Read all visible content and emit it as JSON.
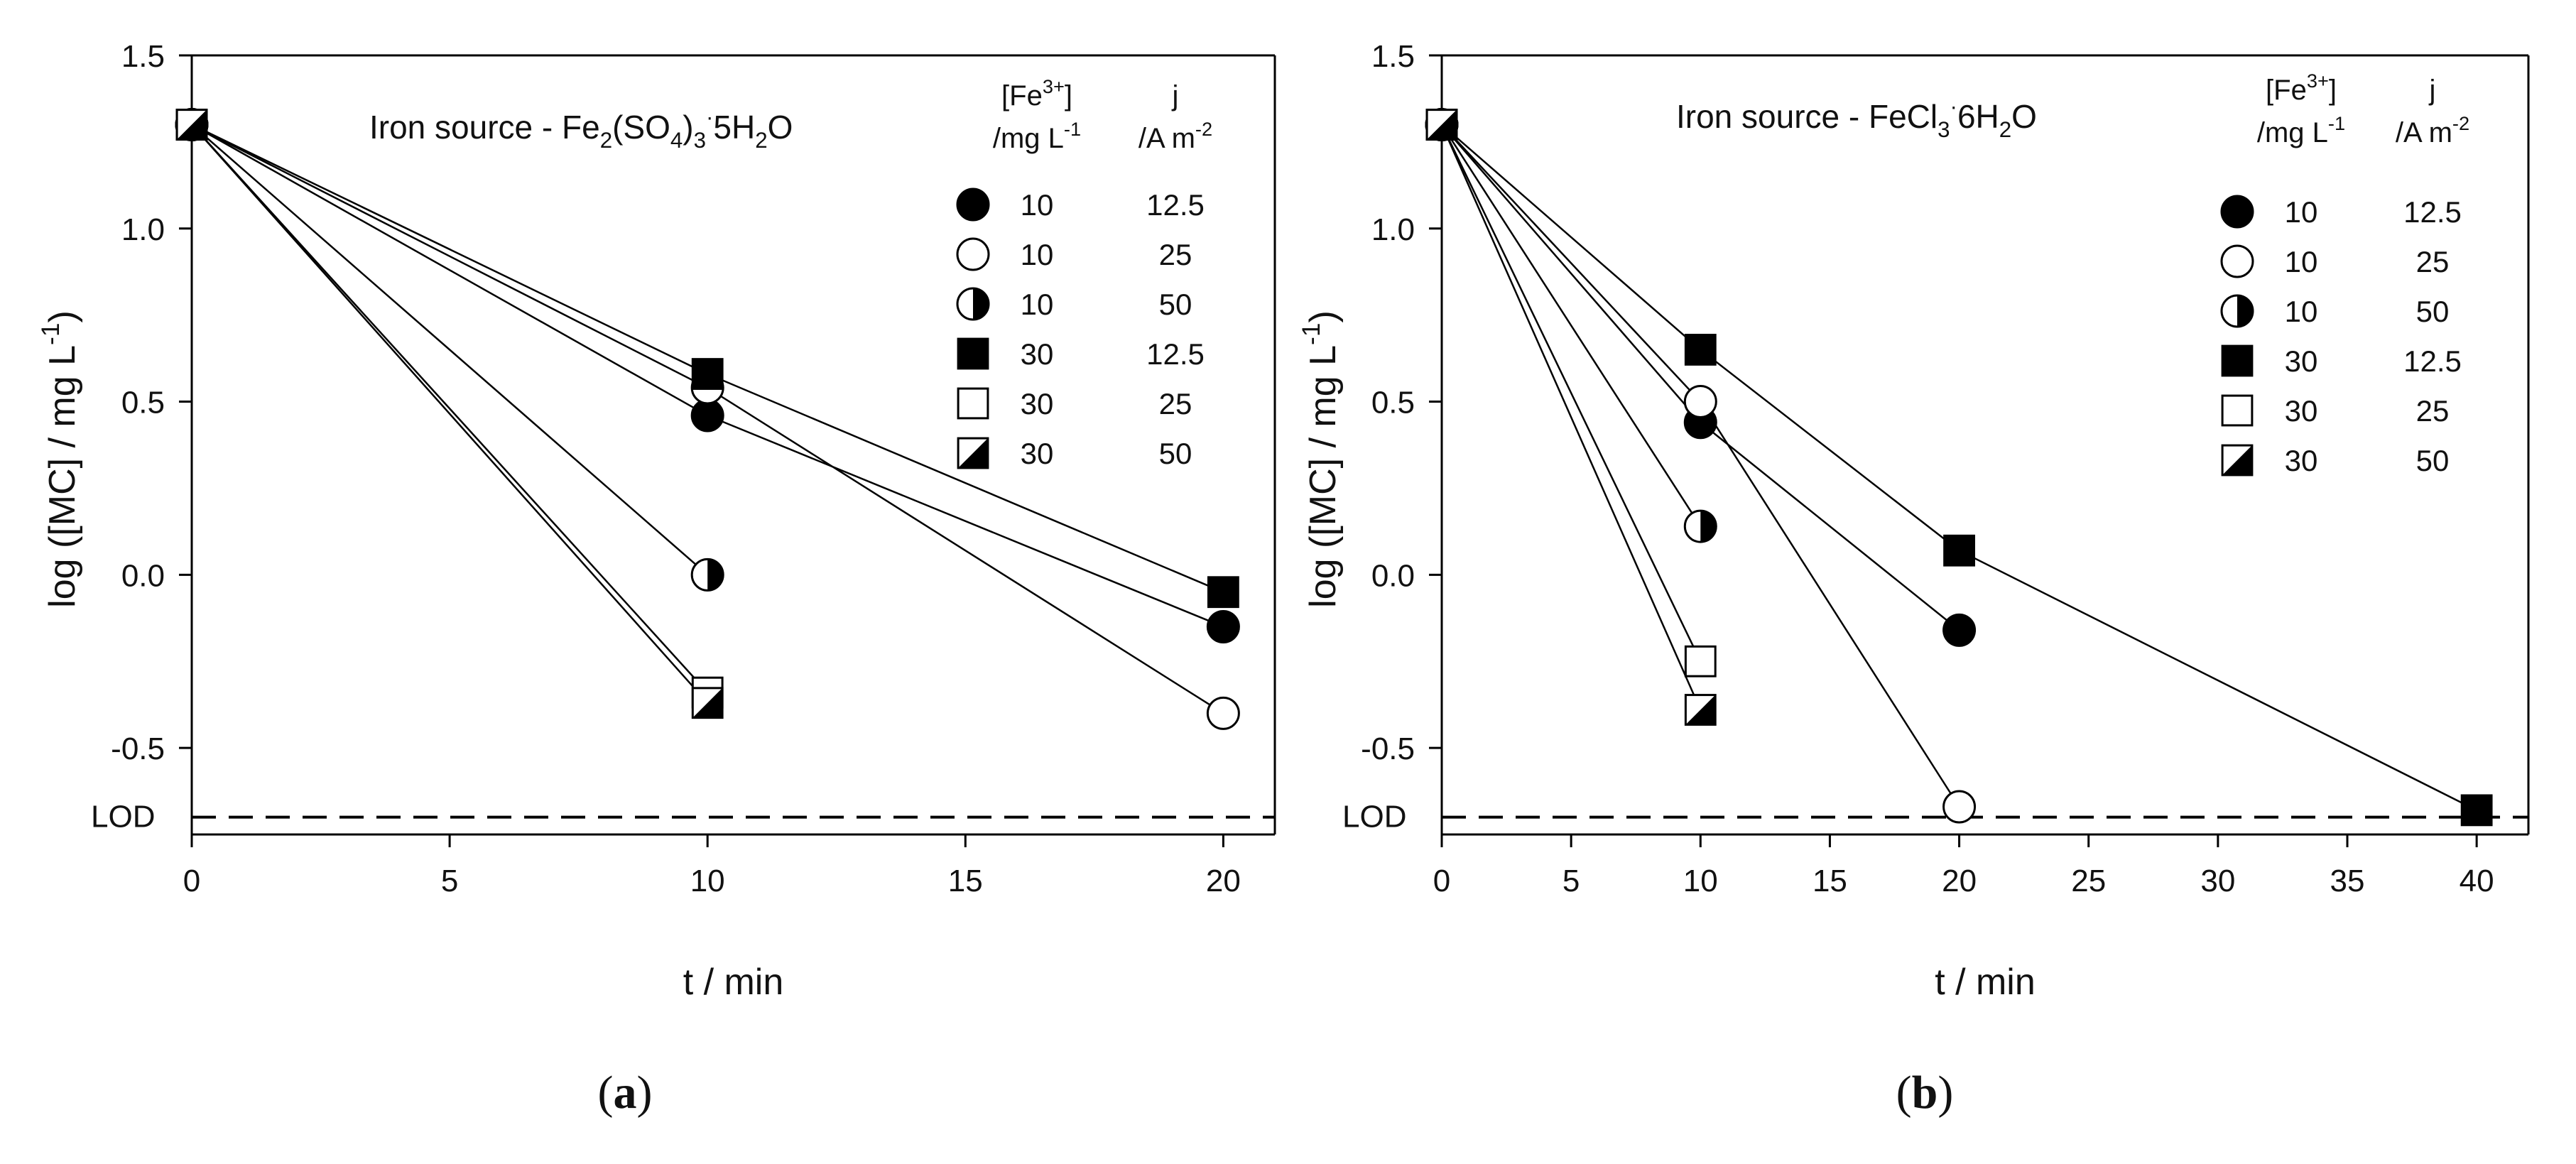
{
  "chart_data": [
    {
      "type": "line",
      "panel_label": "a",
      "title": "Iron source - Fe2(SO4)3·5H2O",
      "xlabel": "t / min",
      "ylabel": "log ([MC] / mg L-1)",
      "xlim": [
        0,
        21
      ],
      "ylim": [
        -0.75,
        1.5
      ],
      "xticks": [
        0,
        5,
        10,
        15,
        20
      ],
      "yticks": [
        -0.5,
        0.0,
        0.5,
        1.0,
        1.5
      ],
      "ytick_labels": [
        "-0.5",
        "0.0",
        "0.5",
        "1.0",
        "1.5"
      ],
      "lod": {
        "label": "LOD",
        "value": -0.7
      },
      "legend": {
        "header_fe": "[Fe3+] /mg L-1",
        "header_j": "j /A m-2",
        "position": "top-right"
      },
      "series": [
        {
          "fe": "10",
          "j": "12.5",
          "marker": "circle-filled",
          "x": [
            0,
            10,
            20
          ],
          "y": [
            1.3,
            0.46,
            -0.15
          ]
        },
        {
          "fe": "10",
          "j": "25",
          "marker": "circle-open",
          "x": [
            0,
            10,
            20
          ],
          "y": [
            1.3,
            0.54,
            -0.4
          ]
        },
        {
          "fe": "10",
          "j": "50",
          "marker": "circle-half",
          "x": [
            0,
            10
          ],
          "y": [
            1.3,
            0.0
          ]
        },
        {
          "fe": "30",
          "j": "12.5",
          "marker": "square-filled",
          "x": [
            0,
            10,
            20
          ],
          "y": [
            1.3,
            0.58,
            -0.05
          ]
        },
        {
          "fe": "30",
          "j": "25",
          "marker": "square-open",
          "x": [
            0,
            10
          ],
          "y": [
            1.3,
            -0.34
          ]
        },
        {
          "fe": "30",
          "j": "50",
          "marker": "square-half",
          "x": [
            0,
            10
          ],
          "y": [
            1.3,
            -0.37
          ]
        }
      ]
    },
    {
      "type": "line",
      "panel_label": "b",
      "title": "Iron source - FeCl3·6H2O",
      "xlabel": "t  / min",
      "ylabel": "log ([MC] / mg L-1)",
      "xlim": [
        0,
        42
      ],
      "ylim": [
        -0.75,
        1.5
      ],
      "xticks": [
        0,
        5,
        10,
        15,
        20,
        25,
        30,
        35,
        40
      ],
      "yticks": [
        -0.5,
        0.0,
        0.5,
        1.0,
        1.5
      ],
      "ytick_labels": [
        "-0.5",
        "0.0",
        "0.5",
        "1.0",
        "1.5"
      ],
      "lod": {
        "label": "LOD",
        "value": -0.7
      },
      "legend": {
        "header_fe": "[Fe3+] /mg L-1",
        "header_j": "j /A m-2",
        "position": "top-right"
      },
      "series": [
        {
          "fe": "10",
          "j": "12.5",
          "marker": "circle-filled",
          "x": [
            0,
            10,
            20
          ],
          "y": [
            1.3,
            0.44,
            -0.16
          ]
        },
        {
          "fe": "10",
          "j": "25",
          "marker": "circle-open",
          "x": [
            0,
            10,
            20
          ],
          "y": [
            1.3,
            0.5,
            -0.67
          ]
        },
        {
          "fe": "10",
          "j": "50",
          "marker": "circle-half",
          "x": [
            0,
            10
          ],
          "y": [
            1.3,
            0.14
          ]
        },
        {
          "fe": "30",
          "j": "12.5",
          "marker": "square-filled",
          "x": [
            0,
            10,
            20,
            40
          ],
          "y": [
            1.3,
            0.65,
            0.07,
            -0.68
          ]
        },
        {
          "fe": "30",
          "j": "25",
          "marker": "square-open",
          "x": [
            0,
            10
          ],
          "y": [
            1.3,
            -0.25
          ]
        },
        {
          "fe": "30",
          "j": "50",
          "marker": "square-half",
          "x": [
            0,
            10
          ],
          "y": [
            1.3,
            -0.39
          ]
        }
      ]
    }
  ]
}
